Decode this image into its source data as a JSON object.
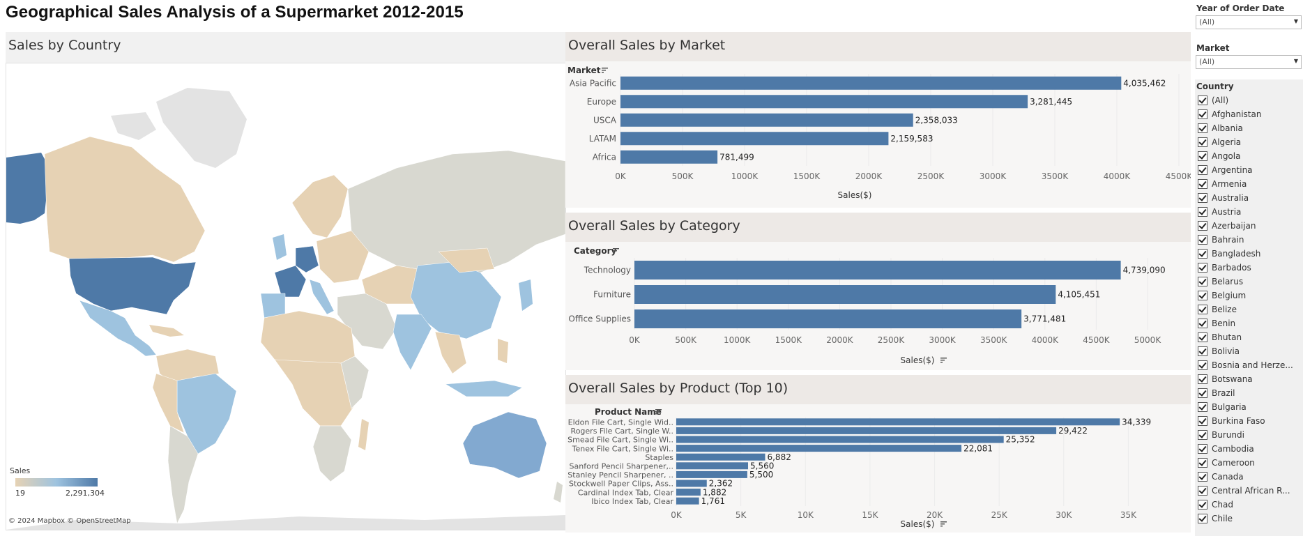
{
  "title": "Geographical Sales Analysis of a Supermarket 2012-2015",
  "map": {
    "title": "Sales by Country",
    "legend_title": "Sales",
    "legend_min": "19",
    "legend_max": "2,291,304",
    "attribution": "© 2024 Mapbox  © OpenStreetMap",
    "colors": {
      "low": "#e6d2b4",
      "mid": "#9ec3df",
      "high": "#4e79a7",
      "none": "#d8d8d0",
      "land": "#e3e3e3",
      "ocean": "#ffffff"
    }
  },
  "filters": {
    "year": {
      "title": "Year of Order Date",
      "value": "(All)"
    },
    "market": {
      "title": "Market",
      "value": "(All)"
    },
    "country": {
      "title": "Country",
      "items": [
        "(All)",
        "Afghanistan",
        "Albania",
        "Algeria",
        "Angola",
        "Argentina",
        "Armenia",
        "Australia",
        "Austria",
        "Azerbaijan",
        "Bahrain",
        "Bangladesh",
        "Barbados",
        "Belarus",
        "Belgium",
        "Belize",
        "Benin",
        "Bhutan",
        "Bolivia",
        "Bosnia and Herze...",
        "Botswana",
        "Brazil",
        "Bulgaria",
        "Burkina Faso",
        "Burundi",
        "Cambodia",
        "Cameroon",
        "Canada",
        "Central African R...",
        "Chad",
        "Chile"
      ]
    }
  },
  "chart_data": [
    {
      "id": "market",
      "type": "bar",
      "title": "Overall Sales by Market",
      "dimension_label": "Market",
      "xlabel": "Sales($)",
      "categories": [
        "Asia Pacific",
        "Europe",
        "USCA",
        "LATAM",
        "Africa"
      ],
      "values": [
        4035462,
        3281445,
        2358033,
        2159583,
        781499
      ],
      "value_labels": [
        "4,035,462",
        "3,281,445",
        "2,358,033",
        "2,159,583",
        "781,499"
      ],
      "ticks": [
        "0K",
        "500K",
        "1000K",
        "1500K",
        "2000K",
        "2500K",
        "3000K",
        "3500K",
        "4000K",
        "4500K"
      ],
      "xlim": [
        0,
        4500000
      ],
      "color": "#4e79a7"
    },
    {
      "id": "category",
      "type": "bar",
      "title": "Overall Sales by Category",
      "dimension_label": "Category",
      "xlabel": "Sales($)",
      "categories": [
        "Technology",
        "Furniture",
        "Office Supplies"
      ],
      "values": [
        4739090,
        4105451,
        3771481
      ],
      "value_labels": [
        "4,739,090",
        "4,105,451",
        "3,771,481"
      ],
      "ticks": [
        "0K",
        "500K",
        "1000K",
        "1500K",
        "2000K",
        "2500K",
        "3000K",
        "3500K",
        "4000K",
        "4500K",
        "5000K"
      ],
      "xlim": [
        0,
        5000000
      ],
      "color": "#4e79a7"
    },
    {
      "id": "product",
      "type": "bar",
      "title": "Overall Sales by Product (Top 10)",
      "dimension_label": "Product Name",
      "xlabel": "Sales($)",
      "categories": [
        "Eldon File Cart, Single Wid..",
        "Rogers File Cart, Single W..",
        "Smead File Cart, Single Wi..",
        "Tenex File Cart, Single Wi..",
        "Staples",
        "Sanford Pencil Sharpener,..",
        "Stanley Pencil Sharpener, ..",
        "Stockwell Paper Clips, Ass..",
        "Cardinal Index Tab, Clear",
        "Ibico Index Tab, Clear"
      ],
      "values": [
        34339,
        29422,
        25352,
        22081,
        6882,
        5560,
        5500,
        2362,
        1882,
        1761
      ],
      "value_labels": [
        "34,339",
        "29,422",
        "25,352",
        "22,081",
        "6,882",
        "5,560",
        "5,500",
        "2,362",
        "1,882",
        "1,761"
      ],
      "ticks": [
        "0K",
        "5K",
        "10K",
        "15K",
        "20K",
        "25K",
        "30K",
        "35K"
      ],
      "xlim": [
        0,
        38000
      ],
      "color": "#4e79a7"
    }
  ]
}
